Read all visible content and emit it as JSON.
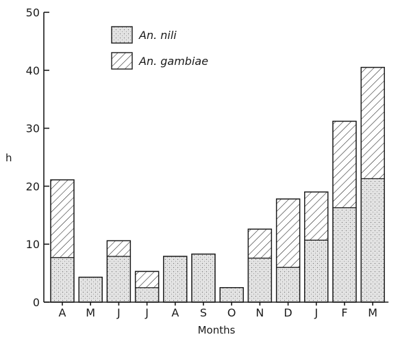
{
  "chart_data": {
    "type": "bar",
    "stacked": true,
    "title": "",
    "xlabel": "Months",
    "ylabel": "h",
    "ylim": [
      0,
      50
    ],
    "yticks": [
      0,
      10,
      20,
      30,
      40,
      50
    ],
    "categories": [
      "A",
      "M",
      "J",
      "J",
      "A",
      "S",
      "O",
      "N",
      "D",
      "J",
      "F",
      "M"
    ],
    "series": [
      {
        "name": "An. nili",
        "pattern": "stippled",
        "values": [
          7.7,
          4.3,
          7.9,
          2.5,
          7.9,
          8.3,
          2.5,
          7.6,
          6.0,
          10.7,
          16.3,
          21.3
        ]
      },
      {
        "name": "An. gambiae",
        "pattern": "hatched",
        "values": [
          13.4,
          0,
          2.7,
          2.8,
          0,
          0,
          0,
          5.0,
          11.8,
          8.3,
          14.9,
          19.2
        ]
      }
    ],
    "legend_position": "top-left",
    "grid": false
  },
  "colors": {
    "ink": "#1a1a1a",
    "stipple_fill": "#e3e3e3",
    "background": "#ffffff"
  }
}
